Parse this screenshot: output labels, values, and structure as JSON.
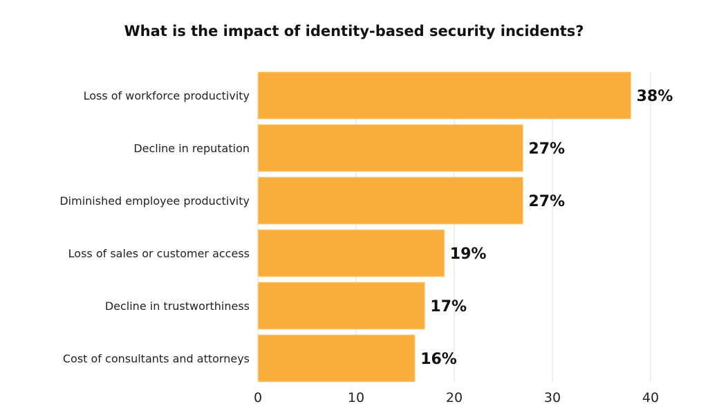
{
  "chart_data": {
    "type": "bar",
    "orientation": "horizontal",
    "title": "What is the impact of identity-based security incidents?",
    "categories": [
      "Loss of workforce productivity",
      "Decline in reputation",
      "Diminished employee productivity",
      "Loss of sales or customer access",
      "Decline in trustworthiness",
      "Cost of consultants and attorneys"
    ],
    "values": [
      38,
      27,
      27,
      19,
      17,
      16
    ],
    "data_labels": [
      "38%",
      "27%",
      "27%",
      "19%",
      "17%",
      "16%"
    ],
    "xlim": [
      0,
      40
    ],
    "xticks": [
      0,
      10,
      20,
      30,
      40
    ],
    "grid": "vertical",
    "bar_color": "#F9AE3B"
  }
}
